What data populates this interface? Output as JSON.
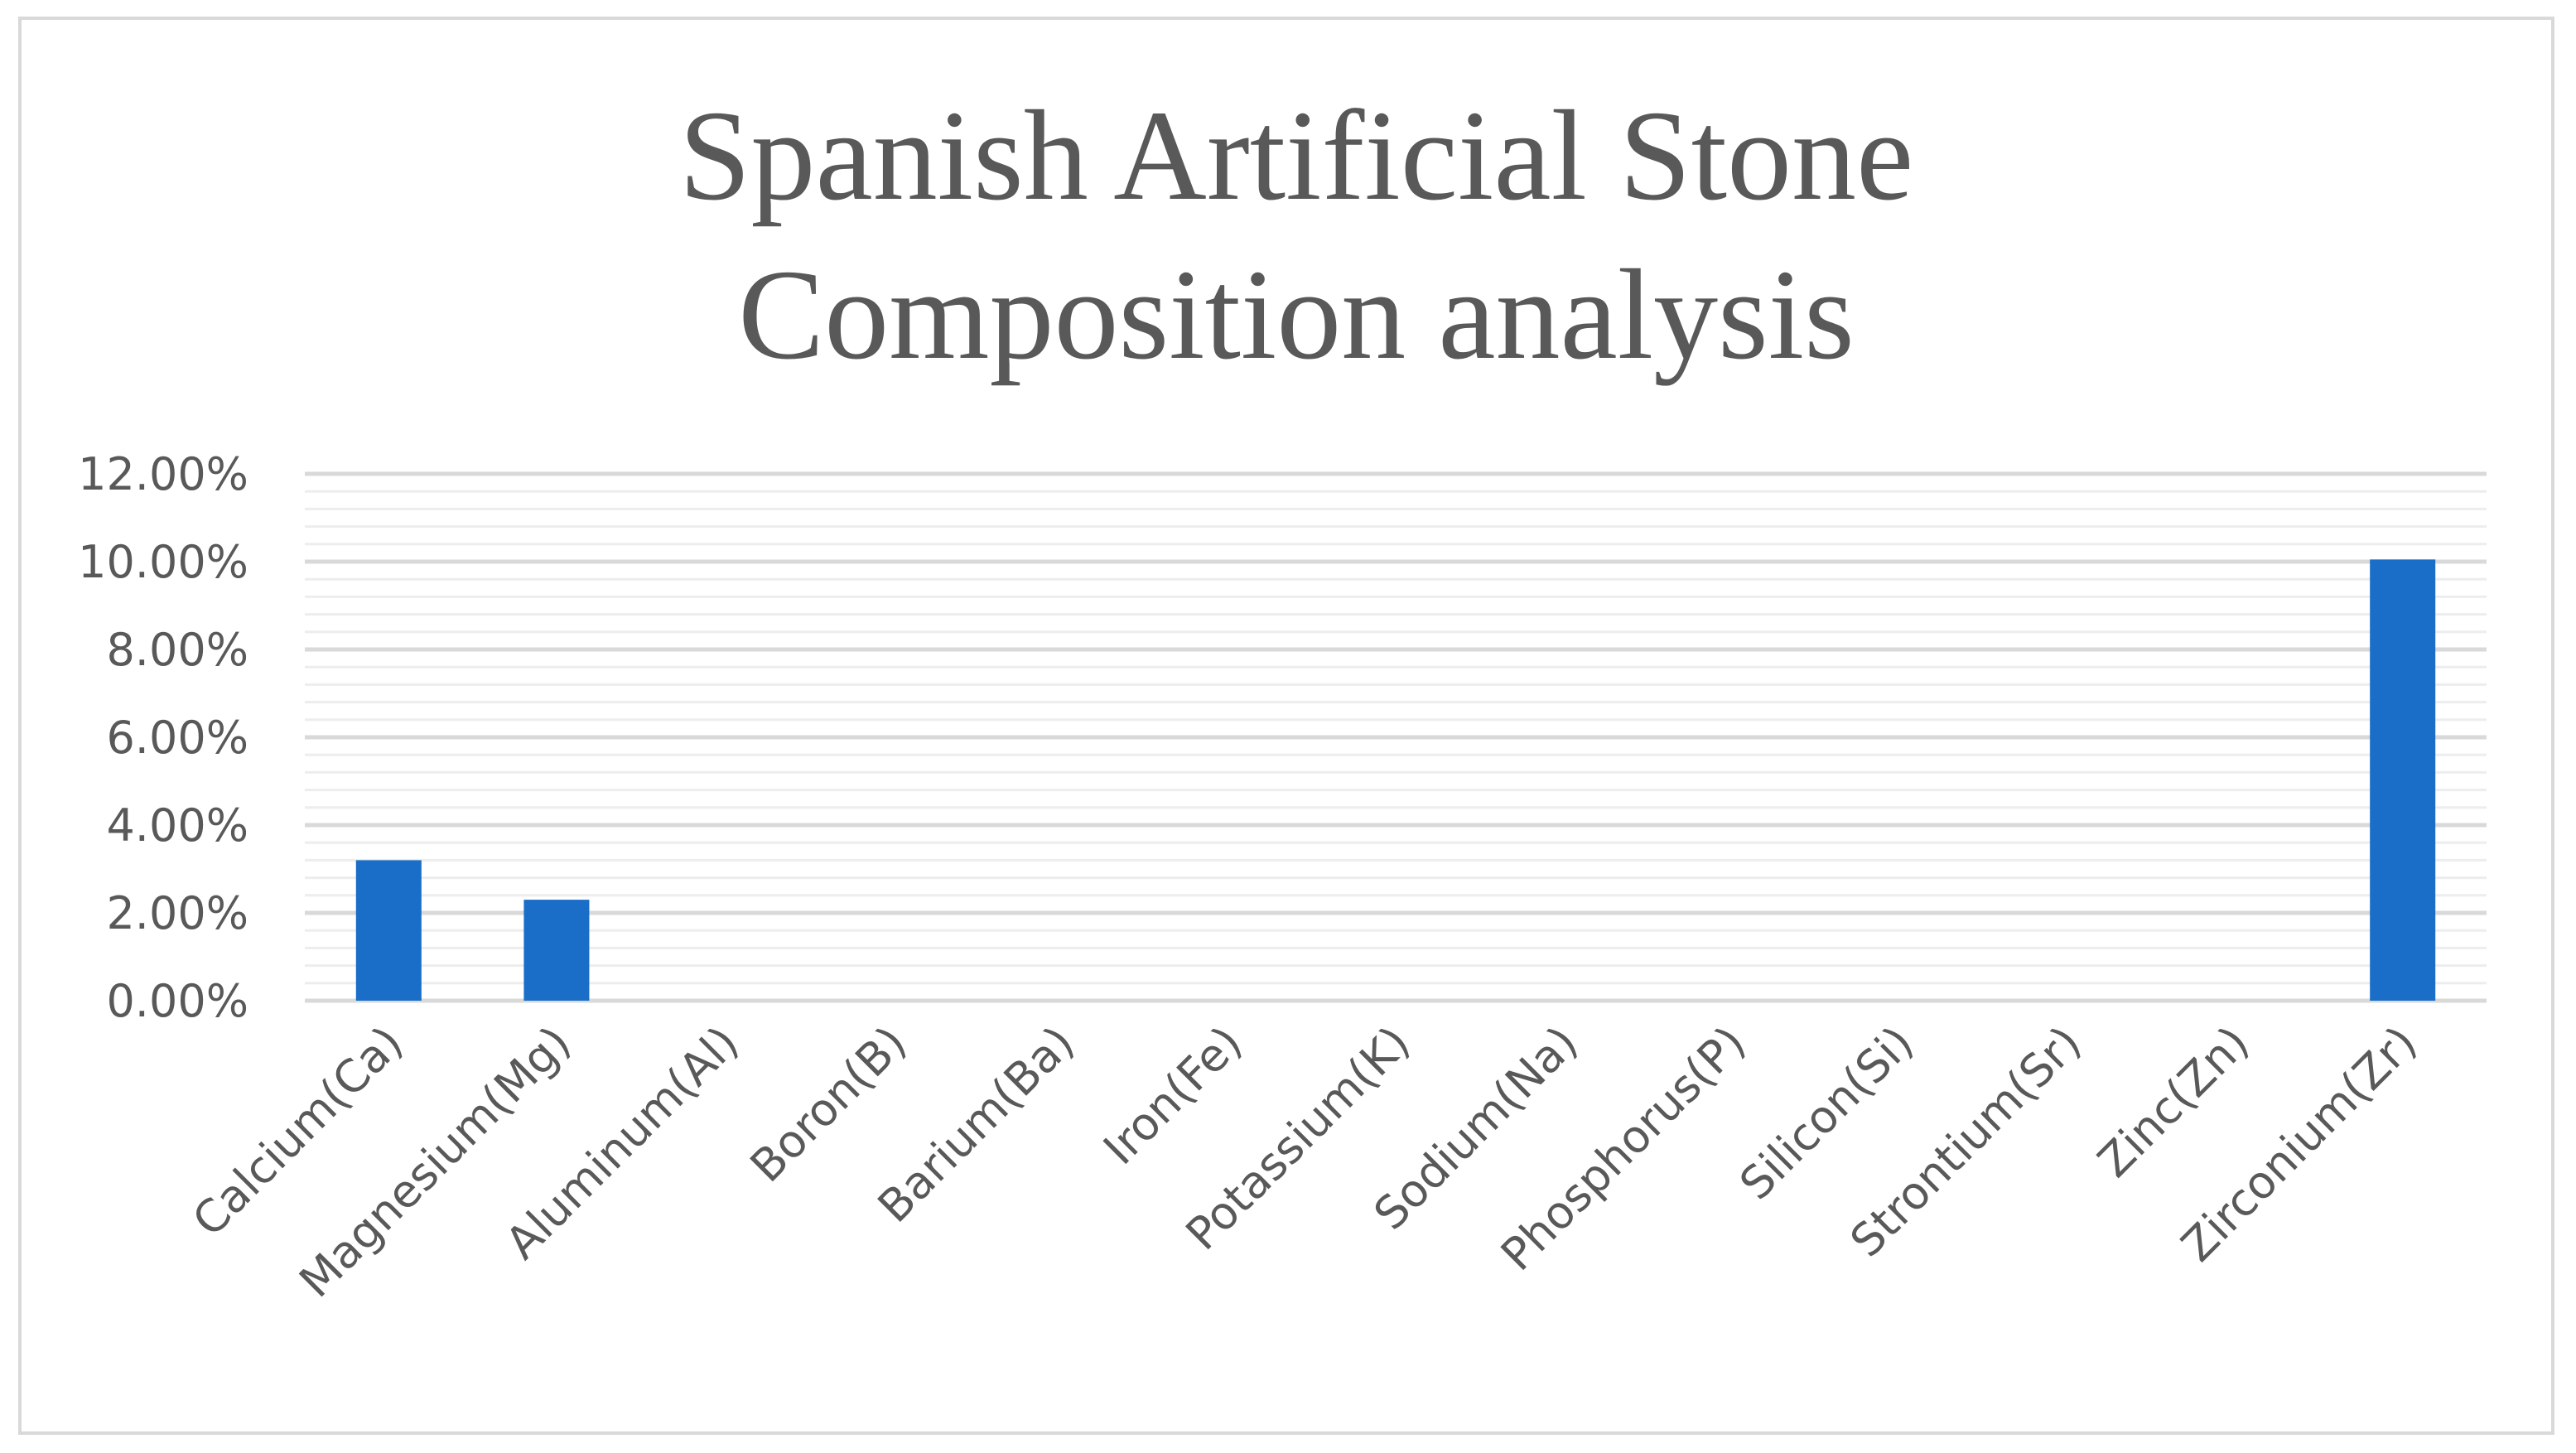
{
  "chart_data": {
    "type": "bar",
    "title_lines": [
      "Spanish Artificial Stone",
      "Composition analysis"
    ],
    "xlabel": "",
    "ylabel": "",
    "categories": [
      "Calcium(Ca)",
      "Magnesium(Mg)",
      "Aluminum(Al)",
      "Boron(B)",
      "Barium(Ba)",
      "Iron(Fe)",
      "Potassium(K)",
      "Sodium(Na)",
      "Phosphorus(P)",
      "Silicon(Si)",
      "Strontium(Sr)",
      "Zinc(Zn)",
      "Zirconium(Zr)"
    ],
    "values": [
      3.2,
      2.3,
      0,
      0,
      0,
      0,
      0,
      0,
      0,
      0,
      0,
      0,
      10.05
    ],
    "ylim": [
      0,
      12
    ],
    "yticks": [
      0,
      2,
      4,
      6,
      8,
      10,
      12
    ],
    "ytick_labels": [
      "0.00%",
      "2.00%",
      "4.00%",
      "6.00%",
      "8.00%",
      "10.00%",
      "12.00%"
    ],
    "grid": true,
    "legend": "none",
    "bar_color": "#1a6ec8",
    "major_grid_color": "#d9d9d9",
    "minor_grid_color": "#ededed",
    "text_color": "#595959"
  }
}
